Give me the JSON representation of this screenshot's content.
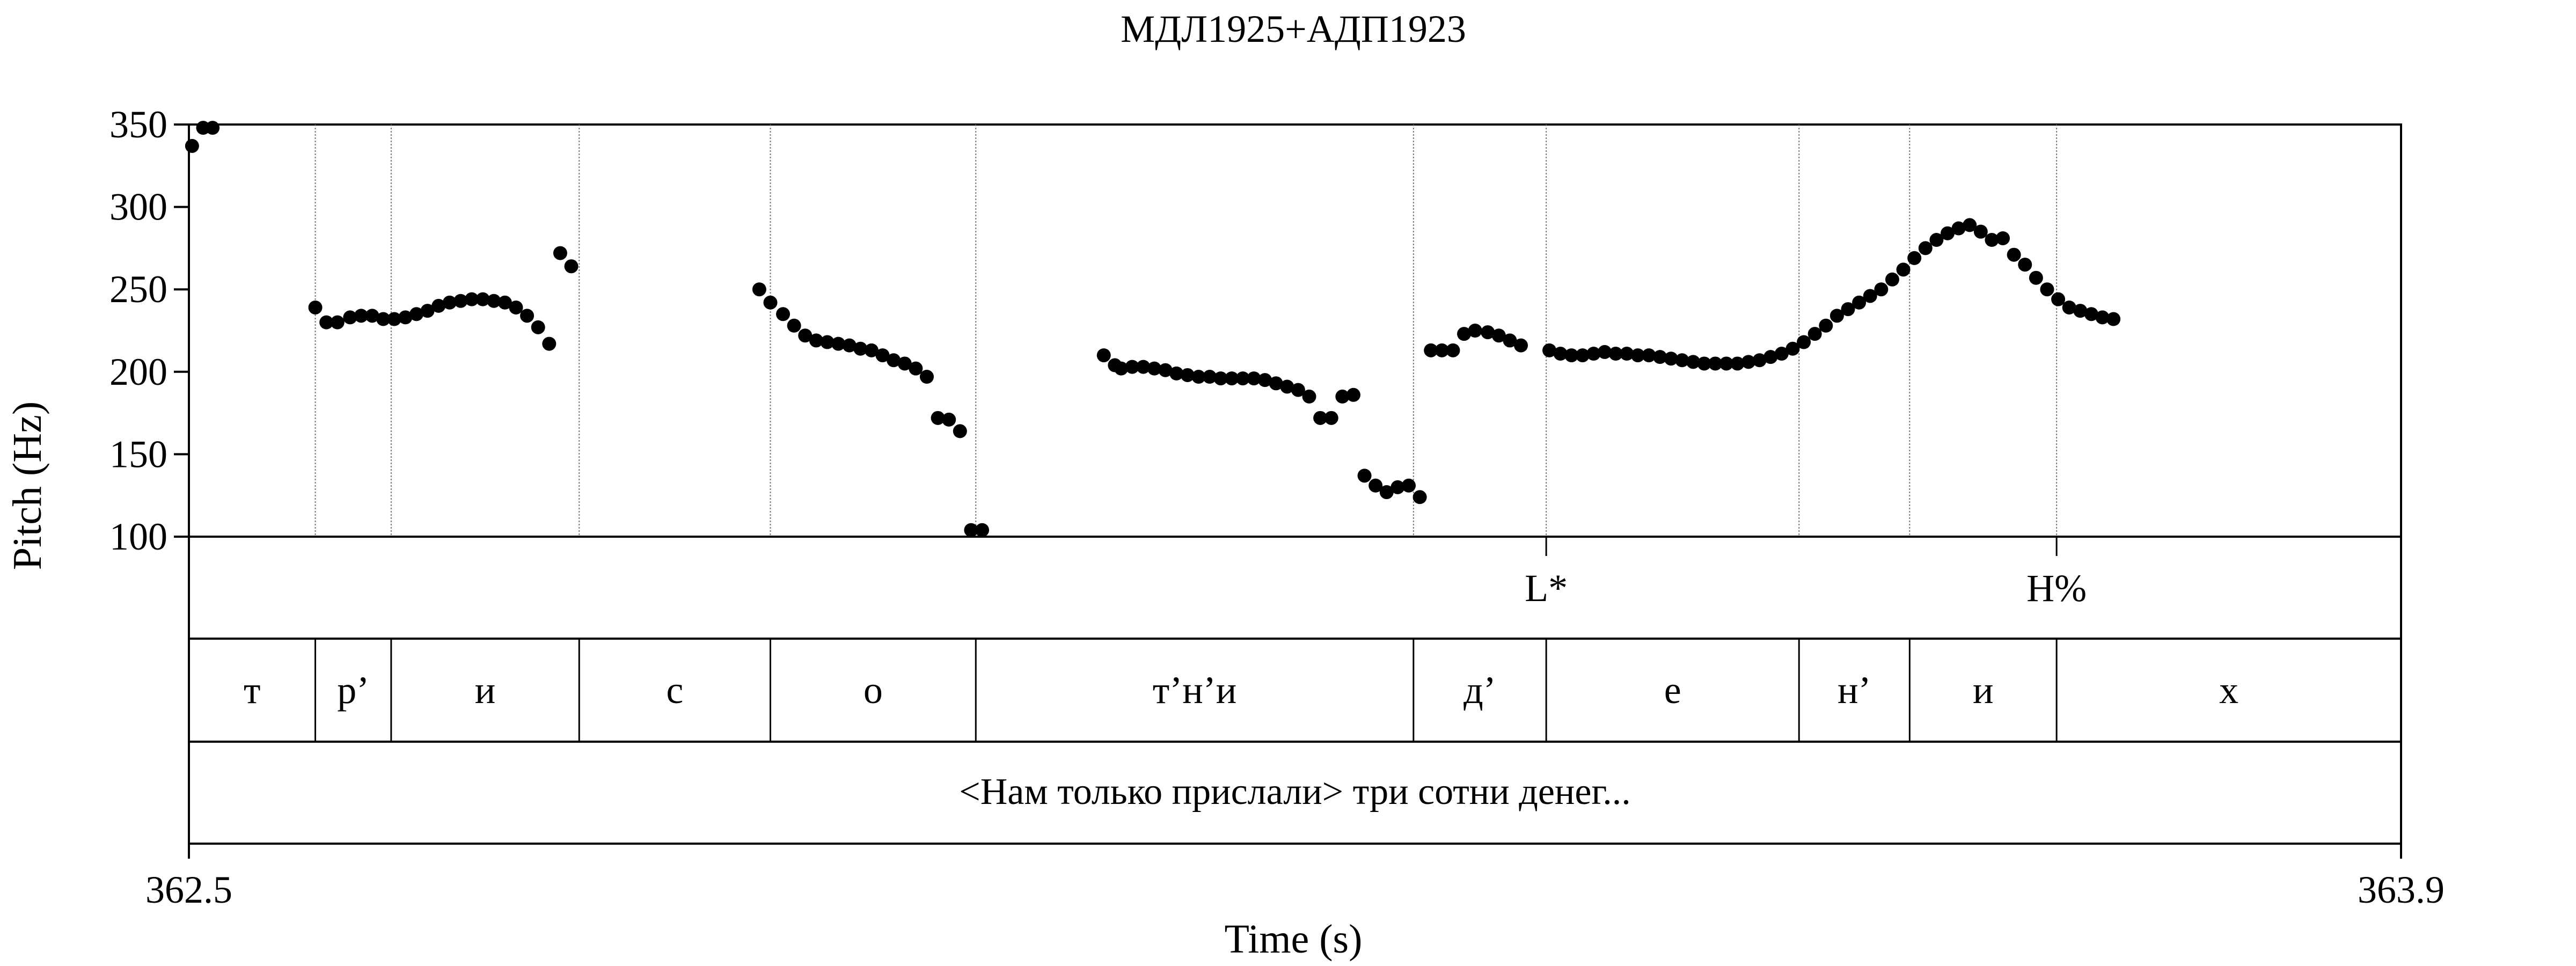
{
  "chart_data": {
    "type": "scatter",
    "title": "МДЛ1925+АДП1923",
    "xlabel": "Time (s)",
    "ylabel": "Pitch (Hz)",
    "xlim": [
      362.5,
      363.9
    ],
    "ylim": [
      100,
      350
    ],
    "x_tick_labels": [
      "362.5",
      "363.9"
    ],
    "y_ticks": [
      100,
      150,
      200,
      250,
      300,
      350
    ],
    "grid": false,
    "point_color": "#000000",
    "series": [
      {
        "x": [
          362.502,
          362.509,
          362.515,
          362.58,
          362.587,
          362.594,
          362.602,
          362.609,
          362.616,
          362.623,
          362.63,
          362.637,
          362.644,
          362.651,
          362.658,
          362.665,
          362.672,
          362.679,
          362.686,
          362.693,
          362.7,
          362.707,
          362.714,
          362.721,
          362.728,
          362.735,
          362.742,
          362.861,
          362.868,
          362.876,
          362.883,
          362.89,
          362.897,
          362.904,
          362.911,
          362.918,
          362.925,
          362.932,
          362.939,
          362.946,
          362.953,
          362.96,
          362.967,
          362.974,
          362.981,
          362.988,
          362.995,
          363.002,
          363.079,
          363.086,
          363.09,
          363.097,
          363.104,
          363.111,
          363.118,
          363.125,
          363.132,
          363.139,
          363.146,
          363.153,
          363.16,
          363.167,
          363.174,
          363.181,
          363.188,
          363.195,
          363.202,
          363.209,
          363.216,
          363.223,
          363.23,
          363.237,
          363.244,
          363.251,
          363.258,
          363.265,
          363.272,
          363.279,
          363.286,
          363.293,
          363.3,
          363.307,
          363.314,
          363.322,
          363.329,
          363.336,
          363.343,
          363.361,
          363.368,
          363.375,
          363.382,
          363.389,
          363.396,
          363.403,
          363.41,
          363.417,
          363.424,
          363.431,
          363.438,
          363.445,
          363.452,
          363.459,
          363.466,
          363.473,
          363.48,
          363.487,
          363.494,
          363.501,
          363.508,
          363.515,
          363.522,
          363.529,
          363.536,
          363.543,
          363.55,
          363.557,
          363.564,
          363.571,
          363.578,
          363.585,
          363.592,
          363.599,
          363.606,
          363.613,
          363.62,
          363.627,
          363.634,
          363.641,
          363.648,
          363.655,
          363.662,
          363.669,
          363.676,
          363.683,
          363.69,
          363.697,
          363.704,
          363.711,
          363.718
        ],
        "y": [
          337,
          348,
          348,
          239,
          230,
          230,
          233,
          234,
          234,
          232,
          232,
          233,
          235,
          237,
          240,
          242,
          243,
          244,
          244,
          243,
          242,
          239,
          234,
          227,
          217,
          272,
          264,
          250,
          242,
          235,
          228,
          222,
          219,
          218,
          217,
          216,
          214,
          213,
          210,
          207,
          205,
          202,
          197,
          172,
          171,
          164,
          104,
          104,
          210,
          204,
          202,
          203,
          203,
          202,
          201,
          199,
          198,
          197,
          197,
          196,
          196,
          196,
          196,
          195,
          193,
          191,
          189,
          185,
          172,
          172,
          185,
          186,
          137,
          131,
          127,
          130,
          131,
          124,
          213,
          213,
          213,
          223,
          225,
          224,
          222,
          219,
          216,
          213,
          211,
          210,
          210,
          211,
          212,
          211,
          211,
          210,
          210,
          209,
          208,
          207,
          206,
          205,
          205,
          205,
          205,
          206,
          207,
          209,
          211,
          214,
          218,
          223,
          228,
          234,
          238,
          242,
          246,
          250,
          256,
          262,
          269,
          275,
          280,
          284,
          287,
          289,
          285,
          280,
          281,
          271,
          265,
          257,
          250,
          244,
          239,
          237,
          235,
          233,
          232
        ]
      }
    ],
    "boundaries": [
      362.58,
      362.628,
      362.747,
      362.868,
      362.998,
      363.275,
      363.359,
      363.519,
      363.589,
      363.682
    ],
    "tones": [
      {
        "label": "L*",
        "time": 363.359
      },
      {
        "label": "H%",
        "time": 363.682
      }
    ],
    "segments": [
      {
        "label": "т",
        "start": 362.5,
        "end": 362.58
      },
      {
        "label": "р’",
        "start": 362.58,
        "end": 362.628
      },
      {
        "label": "и",
        "start": 362.628,
        "end": 362.747
      },
      {
        "label": "с",
        "start": 362.747,
        "end": 362.868
      },
      {
        "label": "о",
        "start": 362.868,
        "end": 362.998
      },
      {
        "label": "т’н’и",
        "start": 362.998,
        "end": 363.275
      },
      {
        "label": "д’",
        "start": 363.275,
        "end": 363.359
      },
      {
        "label": "е",
        "start": 363.359,
        "end": 363.519
      },
      {
        "label": "н’",
        "start": 363.519,
        "end": 363.589
      },
      {
        "label": "и",
        "start": 363.589,
        "end": 363.682
      },
      {
        "label": "х",
        "start": 363.682,
        "end": 363.9
      }
    ],
    "sentence": "<Нам только прислали> три сотни денег..."
  }
}
